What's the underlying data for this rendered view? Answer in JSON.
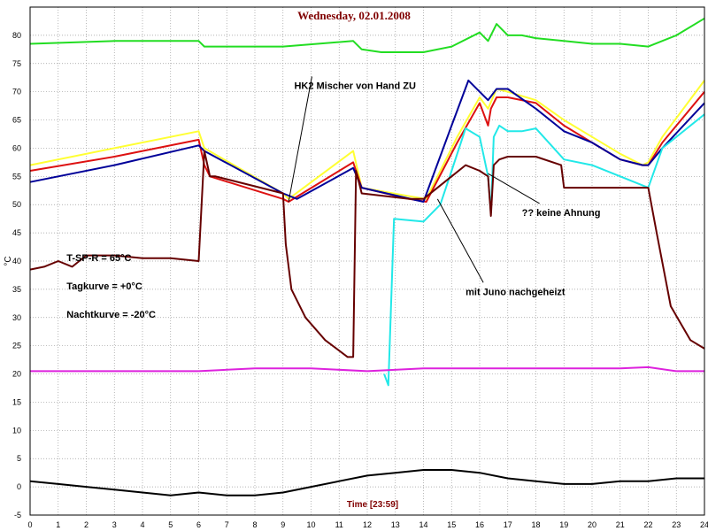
{
  "chart_data": {
    "type": "line",
    "title": "Wednesday, 02.01.2008",
    "xlabel": "Time [23:59]",
    "ylabel": "°C",
    "xlim": [
      0,
      24
    ],
    "ylim": [
      -5,
      85
    ],
    "xticks": [
      0,
      1,
      2,
      3,
      4,
      5,
      6,
      7,
      8,
      9,
      10,
      11,
      12,
      13,
      14,
      15,
      16,
      17,
      18,
      19,
      20,
      21,
      22,
      23,
      24
    ],
    "yticks": [
      -5,
      0,
      5,
      10,
      15,
      20,
      25,
      30,
      35,
      40,
      45,
      50,
      55,
      60,
      65,
      70,
      75,
      80
    ],
    "grid": true,
    "series": [
      {
        "color": "#22dd22",
        "x": [
          0,
          3,
          6,
          6.2,
          9,
          11.5,
          11.8,
          12.5,
          14,
          15,
          16,
          16.3,
          16.6,
          17,
          17.5,
          18,
          19,
          20,
          21,
          22,
          23,
          24
        ],
        "y": [
          78.5,
          79,
          79,
          78,
          78,
          79,
          77.5,
          77,
          77,
          78,
          80.5,
          79,
          82,
          80,
          80,
          79.5,
          79,
          78.5,
          78.5,
          78,
          80,
          83
        ]
      },
      {
        "color": "#ffff33",
        "x": [
          0,
          3,
          6,
          6.2,
          9,
          9.2,
          11.5,
          11.8,
          13.5,
          14.1,
          15.2,
          16,
          16.3,
          16.6,
          17,
          18,
          19,
          20,
          21,
          21.8,
          22,
          22.5,
          24
        ],
        "y": [
          57,
          60,
          63,
          60,
          52,
          51,
          59.5,
          53,
          51.5,
          51,
          62,
          69,
          67,
          70.5,
          70,
          68.5,
          65,
          62,
          59,
          57,
          57.5,
          62,
          72
        ]
      },
      {
        "color": "#dd1111",
        "x": [
          0,
          3,
          6,
          6.2,
          6.4,
          9,
          9.2,
          11.5,
          11.8,
          13.5,
          14.1,
          15.2,
          16,
          16.3,
          16.4,
          16.6,
          17,
          18,
          19,
          20,
          21,
          21.8,
          22,
          22.5,
          24
        ],
        "y": [
          56,
          58.5,
          61.5,
          57,
          55,
          51,
          50.5,
          57.5,
          53,
          51,
          50.5,
          61,
          68,
          64,
          67,
          69,
          69,
          68,
          64,
          61,
          58,
          57,
          57,
          61,
          70
        ]
      },
      {
        "color": "#000099",
        "x": [
          0,
          3,
          6,
          6.2,
          9,
          9.5,
          11.5,
          11.8,
          14,
          15,
          15.6,
          16,
          16.3,
          16.6,
          17,
          18,
          19,
          20,
          21,
          21.8,
          22,
          22.5,
          24
        ],
        "y": [
          54,
          57,
          60.5,
          59.5,
          52,
          51,
          56.5,
          53,
          50.5,
          64,
          72,
          70,
          68.5,
          70.5,
          70.5,
          67,
          63,
          61,
          58,
          57,
          57,
          60,
          68
        ]
      },
      {
        "color": "#22e8e8",
        "x": [
          12.6,
          12.75,
          12.95,
          14,
          14.6,
          15,
          15.5,
          16,
          16.3,
          16.4,
          16.5,
          16.7,
          17,
          17.5,
          18,
          19,
          20,
          21,
          22,
          22.5,
          24
        ],
        "y": [
          20,
          18,
          47.5,
          47,
          50,
          56,
          63.5,
          62,
          55,
          48.5,
          62,
          64,
          63,
          63,
          63.5,
          58,
          57,
          55,
          53,
          60,
          66
        ]
      },
      {
        "color": "#660000",
        "x": [
          0,
          0.5,
          1,
          1.5,
          2,
          3,
          4,
          5,
          6,
          6.2,
          6.4,
          6.6,
          9,
          9.1,
          9.3,
          9.8,
          10.5,
          11.3,
          11.5,
          11.6,
          11.8,
          13.5,
          14,
          15,
          15.5,
          16,
          16.3,
          16.4,
          16.5,
          16.7,
          17,
          18,
          18.9,
          19,
          20,
          21,
          22,
          22.3,
          22.8,
          23.5,
          24
        ],
        "y": [
          38.5,
          39,
          40,
          39,
          41,
          41,
          40.5,
          40.5,
          40,
          59.5,
          55,
          55,
          52,
          43,
          35,
          30,
          26,
          23,
          23,
          56,
          52,
          51,
          51,
          55,
          57,
          56,
          55,
          48,
          57,
          58,
          58.5,
          58.5,
          57,
          53,
          53,
          53,
          53,
          45,
          32,
          26,
          24.5
        ]
      },
      {
        "color": "#dd22dd",
        "x": [
          0,
          2,
          4,
          6,
          8,
          10,
          12,
          14,
          16,
          18,
          20,
          21,
          22,
          23,
          24
        ],
        "y": [
          20.5,
          20.5,
          20.5,
          20.5,
          21,
          21,
          20.5,
          21,
          21,
          21,
          21,
          21,
          21.2,
          20.5,
          20.5
        ]
      },
      {
        "color": "#000000",
        "x": [
          0,
          1,
          2,
          3,
          4,
          5,
          6,
          7,
          8,
          9,
          10,
          11,
          12,
          13,
          14,
          15,
          16,
          17,
          18,
          19,
          20,
          21,
          22,
          23,
          24
        ],
        "y": [
          1,
          0.5,
          0,
          -0.5,
          -1,
          -1.5,
          -1,
          -1.5,
          -1.5,
          -1,
          0,
          1,
          2,
          2.5,
          3,
          3,
          2.5,
          1.5,
          1,
          0.5,
          0.5,
          1,
          1,
          1.5,
          1.5
        ]
      }
    ],
    "annotations": [
      {
        "text": "HK2 Mischer von Hand ZU",
        "x": 9.4,
        "y": 70.5,
        "tx": 9.2,
        "ty": 50.5
      },
      {
        "text": "?? keine Ahnung",
        "x": 17.5,
        "y": 48,
        "tx": 16.3,
        "ty": 55.5
      },
      {
        "text": "mit Juno nachgeheizt",
        "x": 15.5,
        "y": 34,
        "tx": 14.5,
        "ty": 51
      },
      {
        "text": "T-SP-R = 65°C",
        "x": 1.3,
        "y": 40
      },
      {
        "text": "Tagkurve = +0°C",
        "x": 1.3,
        "y": 35
      },
      {
        "text": "Nachtkurve = -20°C",
        "x": 1.3,
        "y": 30
      }
    ]
  }
}
